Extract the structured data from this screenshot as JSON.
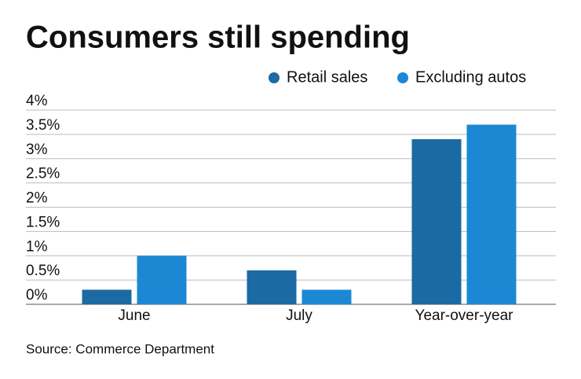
{
  "chart_data": {
    "type": "bar",
    "title": "Consumers still spending",
    "source": "Source: Commerce Department",
    "categories": [
      "June",
      "July",
      "Year-over-year"
    ],
    "series": [
      {
        "name": "Retail sales",
        "color": "#1b6aa3",
        "values": [
          0.3,
          0.7,
          3.4
        ]
      },
      {
        "name": "Excluding autos",
        "color": "#1c88d4",
        "values": [
          1.0,
          0.3,
          3.7
        ]
      }
    ],
    "ylim": [
      0,
      4
    ],
    "yticks": [
      {
        "value": 0,
        "label": "0%"
      },
      {
        "value": 0.5,
        "label": "0.5%"
      },
      {
        "value": 1,
        "label": "1%"
      },
      {
        "value": 1.5,
        "label": "1.5%"
      },
      {
        "value": 2,
        "label": "2%"
      },
      {
        "value": 2.5,
        "label": "2.5%"
      },
      {
        "value": 3,
        "label": "3%"
      },
      {
        "value": 3.5,
        "label": "3.5%"
      },
      {
        "value": 4,
        "label": "4%"
      }
    ],
    "grid": true,
    "legend": "top-right"
  }
}
